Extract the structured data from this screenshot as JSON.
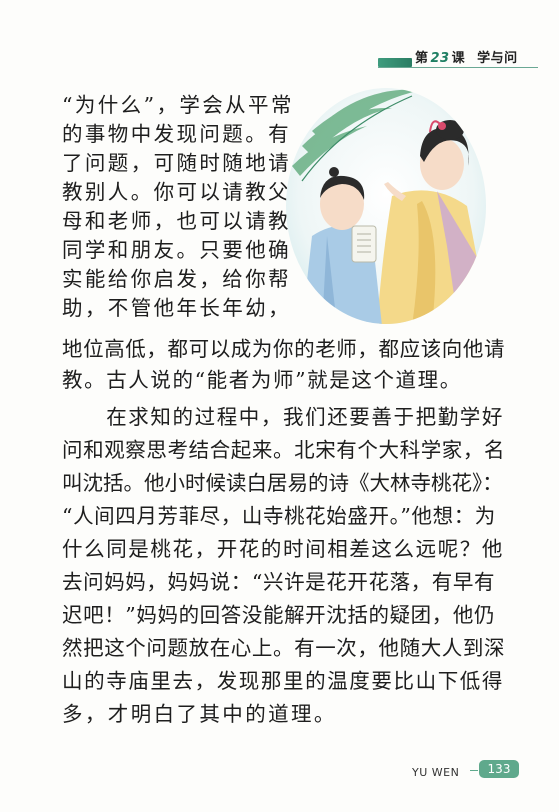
{
  "header": {
    "lesson": "第",
    "lesson_num": "23",
    "lesson_unit": "课",
    "title": "学与问"
  },
  "paragraphs": [
    "“为什么”，学会从平常",
    "的事物中发现问题。有",
    "了问题，可随时随地请",
    "教别人。你可以请教父",
    "母和老师，也可以请教",
    "同学和朋友。只要他确",
    "实能给你启发，给你帮",
    "助，不管他年长年幼，",
    "地位高低，都可以成为你的老师，都应该向他请",
    "教。古人说的“能者为师”就是这个道理。",
    "　　在求知的过程中，我们还要善于把勤学好",
    "问和观察思考结合起来。北宋有个大科学家，名",
    "叫沈括。他小时候读白居易的诗《大林寺桃花》：",
    "“人间四月芳菲尽，山寺桃花始盛开。”他想：为",
    "什么同是桃花，开花的时间相差这么远呢？他",
    "去问妈妈，妈妈说：“兴许是花开花落，有早有",
    "迟吧！”妈妈的回答没能解开沈括的疑团，他仍",
    "然把这个问题放在心上。有一次，他随大人到深",
    "山的寺庙里去，发现那里的温度要比山下低得",
    "多，才明白了其中的道理。"
  ],
  "footer": {
    "label": "YU WEN",
    "page": "133"
  },
  "colors": {
    "accent": "#3f9c7e",
    "badge": "#5fa98c"
  }
}
